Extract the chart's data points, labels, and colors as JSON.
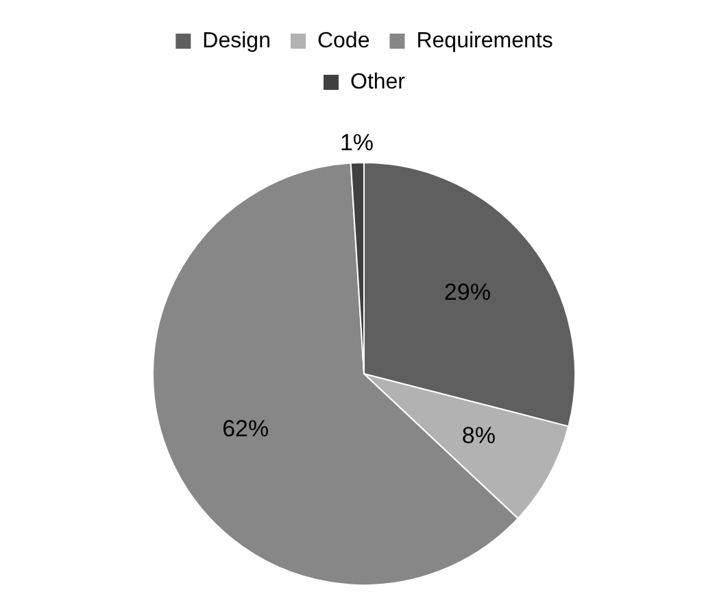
{
  "chart_data": {
    "type": "pie",
    "categories": [
      "Design",
      "Code",
      "Requirements",
      "Other"
    ],
    "values": [
      29,
      8,
      62,
      1
    ],
    "colors": [
      "#5f5f5f",
      "#b2b2b2",
      "#878787",
      "#404040"
    ],
    "value_labels": [
      "29%",
      "8%",
      "62%",
      "1%"
    ],
    "legend": "top"
  }
}
